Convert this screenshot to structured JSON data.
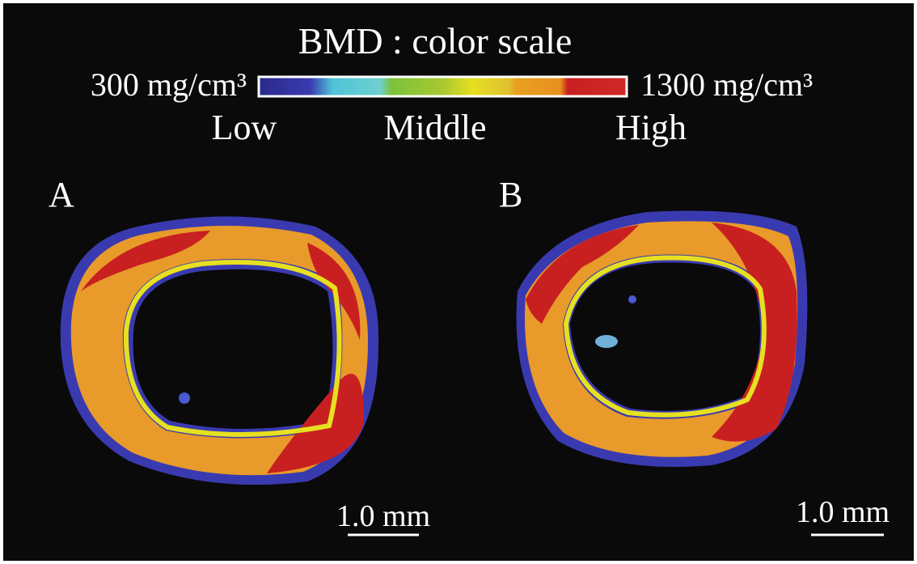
{
  "header": {
    "title": "BMD : color scale",
    "min_label": "300 mg/cm³",
    "max_label": "1300 mg/cm³",
    "low": "Low",
    "middle": "Middle",
    "high": "High"
  },
  "panels": [
    {
      "label": "A",
      "scale_bar": "1.0 mm"
    },
    {
      "label": "B",
      "scale_bar": "1.0 mm"
    }
  ]
}
